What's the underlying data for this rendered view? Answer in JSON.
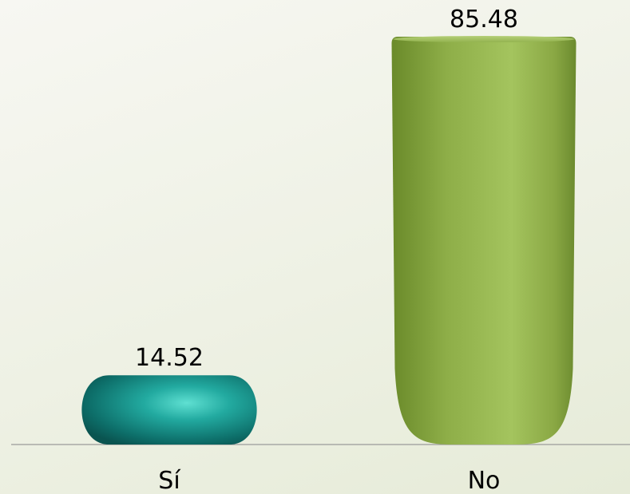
{
  "chart_data": {
    "type": "bar",
    "categories": [
      "Sí",
      "No"
    ],
    "values": [
      14.52,
      85.48
    ],
    "value_labels": [
      "14.52",
      "85.48"
    ],
    "ylim": [
      0,
      100
    ],
    "grid": false,
    "legend": "none",
    "colors": [
      "#1a9a90",
      "#8fb048"
    ]
  }
}
